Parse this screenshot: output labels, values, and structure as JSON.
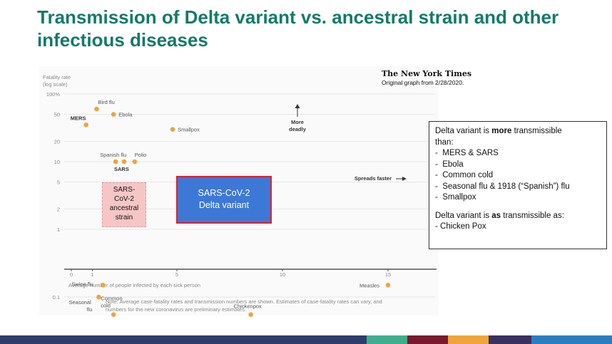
{
  "title": "Transmission of Delta variant vs. ancestral strain and other infectious diseases",
  "source": {
    "publisher": "The New York Times",
    "note": "Original graph from 2/28/2020."
  },
  "chart_data": {
    "type": "scatter",
    "y_axis_title": [
      "Fatality rate",
      "(log scale)"
    ],
    "y_scale": "log",
    "ylim": [
      0.05,
      100
    ],
    "xlim": [
      0,
      16
    ],
    "xlabel": "Average number of people infected by each sick person",
    "x_ticks": [
      "0",
      "1",
      "5",
      "10",
      "15"
    ],
    "y_ticks": [
      {
        "v": 100,
        "label": "100%"
      },
      {
        "v": 50,
        "label": "50"
      },
      {
        "v": 20,
        "label": "20"
      },
      {
        "v": 10,
        "label": "10"
      },
      {
        "v": 5,
        "label": "5"
      },
      {
        "v": 2,
        "label": "2"
      },
      {
        "v": 1,
        "label": "1"
      },
      {
        "v": 0.1,
        "label": "0.1"
      }
    ],
    "points": [
      {
        "name": "MERS",
        "x": 0.7,
        "y": 35,
        "bold": true
      },
      {
        "name": "Bird flu",
        "x": 1.2,
        "y": 60
      },
      {
        "name": "Ebola",
        "x": 2.0,
        "y": 50
      },
      {
        "name": "Smallpox",
        "x": 4.8,
        "y": 30
      },
      {
        "name": "Spanish flu",
        "x": 2.1,
        "y": 10
      },
      {
        "name": "SARS",
        "x": 2.5,
        "y": 10,
        "bold": true
      },
      {
        "name": "Polio",
        "x": 3.0,
        "y": 10
      },
      {
        "name": "Swine flu",
        "x": 1.5,
        "y": 0.15
      },
      {
        "name": "Seasonal flu",
        "x": 1.3,
        "y": 0.1
      },
      {
        "name": "Common cold",
        "x": 2.0,
        "y": 0.055
      },
      {
        "name": "Chickenpox",
        "x": 8.5,
        "y": 0.055
      },
      {
        "name": "Measles",
        "x": 15.0,
        "y": 0.15
      }
    ],
    "annotations": {
      "more_deadly": [
        "More",
        "deadly"
      ],
      "spreads_faster": "Spreads faster"
    },
    "point_color": "#f0a43a"
  },
  "callouts": {
    "ancestral": [
      "SARS-",
      "CoV-2",
      "ancestral",
      "strain"
    ],
    "delta": [
      "SARS-CoV-2",
      "Delta variant"
    ]
  },
  "footnote": "Note: Average case-fatality rates and transmission numbers are shown. Estimates of case-fatality rates can vary, and numbers for the new coronavirus are preliminary estimates.",
  "info_box": {
    "more_prefix": "Delta variant is ",
    "more_word": "more",
    "more_suffix": " transmissible",
    "more_line2": "than:",
    "more_items": [
      "MERS & SARS",
      "Ebola",
      "Common cold",
      "Seasonal flu & 1918 (“Spanish”) flu",
      "Smallpox"
    ],
    "as_prefix": "Delta variant is ",
    "as_word": "as",
    "as_suffix": " transmissible as:",
    "as_items": [
      "Chicken Pox"
    ]
  },
  "bottom_bar_colors": [
    "#2e3d6b",
    "#3fae8c",
    "#7a1830",
    "#f0a43a",
    "#3a3060",
    "#2a7fc0"
  ]
}
